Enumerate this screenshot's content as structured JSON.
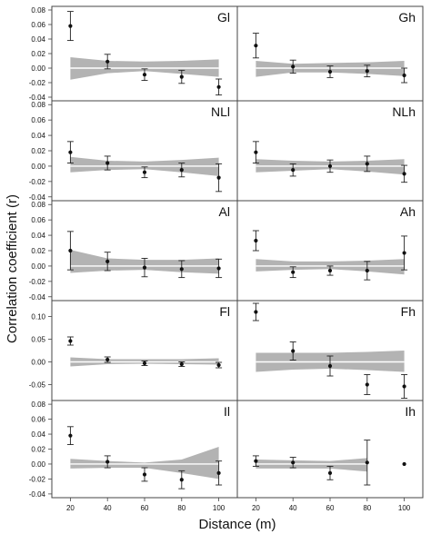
{
  "chart_data": {
    "type": "scatter",
    "xlabel": "Distance (m)",
    "ylabel": "Correlation coefficient (r)",
    "x": [
      20,
      40,
      60,
      80,
      100
    ],
    "x_ticks": [
      "20",
      "40",
      "60",
      "80",
      "100"
    ],
    "grid": false,
    "panels": [
      {
        "label": "Gl",
        "ylim": [
          -0.045,
          0.085
        ],
        "y_ticks": [
          "-0.04",
          "-0.02",
          "0.00",
          "0.02",
          "0.04",
          "0.06",
          "0.08"
        ],
        "y": [
          0.058,
          0.009,
          -0.009,
          -0.012,
          -0.026
        ],
        "err": [
          0.02,
          0.01,
          0.008,
          0.009,
          0.011
        ],
        "envelope_upper": [
          0.015,
          0.01,
          0.009,
          0.01,
          0.012
        ],
        "envelope_lower": [
          -0.016,
          -0.007,
          -0.004,
          -0.008,
          -0.012
        ]
      },
      {
        "label": "Gh",
        "ylim": [
          -0.045,
          0.085
        ],
        "y_ticks": [
          "-0.04",
          "-0.02",
          "0.00",
          "0.02",
          "0.04",
          "0.06",
          "0.08"
        ],
        "y": [
          0.031,
          0.002,
          -0.005,
          -0.004,
          -0.01
        ],
        "err": [
          0.017,
          0.009,
          0.008,
          0.008,
          0.01
        ],
        "envelope_upper": [
          0.01,
          0.006,
          0.007,
          0.008,
          0.01
        ],
        "envelope_lower": [
          -0.012,
          -0.006,
          -0.006,
          -0.008,
          -0.011
        ]
      },
      {
        "label": "NLl",
        "ylim": [
          -0.045,
          0.085
        ],
        "y_ticks": [
          "-0.04",
          "-0.02",
          "0.00",
          "0.02",
          "0.04",
          "0.06",
          "0.08"
        ],
        "y": [
          0.018,
          0.004,
          -0.008,
          -0.005,
          -0.015
        ],
        "err": [
          0.014,
          0.009,
          0.007,
          0.009,
          0.018
        ],
        "envelope_upper": [
          0.012,
          0.007,
          0.006,
          0.008,
          0.011
        ],
        "envelope_lower": [
          -0.008,
          -0.005,
          -0.004,
          -0.008,
          -0.013
        ]
      },
      {
        "label": "NLh",
        "ylim": [
          -0.045,
          0.085
        ],
        "y_ticks": [
          "-0.04",
          "-0.02",
          "0.00",
          "0.02",
          "0.04",
          "0.06",
          "0.08"
        ],
        "y": [
          0.018,
          -0.005,
          0.0,
          0.003,
          -0.01
        ],
        "err": [
          0.014,
          0.008,
          0.008,
          0.01,
          0.011
        ],
        "envelope_upper": [
          0.009,
          0.007,
          0.006,
          0.007,
          0.009
        ],
        "envelope_lower": [
          -0.008,
          -0.006,
          -0.004,
          -0.007,
          -0.011
        ]
      },
      {
        "label": "Al",
        "ylim": [
          -0.045,
          0.085
        ],
        "y_ticks": [
          "-0.04",
          "-0.02",
          "0.00",
          "0.02",
          "0.04",
          "0.06",
          "0.08"
        ],
        "y": [
          0.02,
          0.006,
          -0.002,
          -0.004,
          -0.003
        ],
        "err": [
          0.025,
          0.012,
          0.012,
          0.011,
          0.012
        ],
        "envelope_upper": [
          0.021,
          0.01,
          0.008,
          0.008,
          0.01
        ],
        "envelope_lower": [
          -0.009,
          -0.006,
          -0.005,
          -0.008,
          -0.01
        ]
      },
      {
        "label": "Ah",
        "ylim": [
          -0.045,
          0.085
        ],
        "y_ticks": [
          "-0.04",
          "-0.02",
          "0.00",
          "0.02",
          "0.04",
          "0.06",
          "0.08"
        ],
        "y": [
          0.033,
          -0.008,
          -0.006,
          -0.006,
          0.017
        ],
        "err": [
          0.013,
          0.007,
          0.006,
          0.012,
          0.022
        ],
        "envelope_upper": [
          0.009,
          0.006,
          0.006,
          0.007,
          0.009
        ],
        "envelope_lower": [
          -0.007,
          -0.005,
          -0.004,
          -0.007,
          -0.011
        ]
      },
      {
        "label": "Fl",
        "ylim": [
          -0.085,
          0.135
        ],
        "y_ticks": [
          "-0.05",
          "0.00",
          "0.05",
          "0.10"
        ],
        "y": [
          0.046,
          0.005,
          -0.003,
          -0.005,
          -0.007
        ],
        "err": [
          0.009,
          0.006,
          0.005,
          0.005,
          0.006
        ],
        "envelope_upper": [
          0.01,
          0.006,
          0.006,
          0.006,
          0.008
        ],
        "envelope_lower": [
          -0.01,
          -0.005,
          -0.004,
          -0.005,
          -0.006
        ]
      },
      {
        "label": "Fh",
        "ylim": [
          -0.085,
          0.135
        ],
        "y_ticks": [
          "-0.05",
          "0.00",
          "0.05",
          "0.10"
        ],
        "y": [
          0.11,
          0.024,
          -0.009,
          -0.05,
          -0.054
        ],
        "err": [
          0.019,
          0.02,
          0.022,
          0.022,
          0.026
        ],
        "envelope_upper": [
          0.02,
          0.02,
          0.02,
          0.022,
          0.025
        ],
        "envelope_lower": [
          -0.022,
          -0.017,
          -0.015,
          -0.018,
          -0.022
        ]
      },
      {
        "label": "Il",
        "ylim": [
          -0.045,
          0.085
        ],
        "y_ticks": [
          "-0.04",
          "-0.02",
          "0.00",
          "0.02",
          "0.04",
          "0.06",
          "0.08"
        ],
        "y": [
          0.038,
          0.003,
          -0.014,
          -0.021,
          -0.012
        ],
        "err": [
          0.012,
          0.008,
          0.009,
          0.012,
          0.016
        ],
        "envelope_upper": [
          0.007,
          0.004,
          0.002,
          0.006,
          0.023
        ],
        "envelope_lower": [
          -0.006,
          -0.005,
          -0.005,
          -0.012,
          -0.02
        ]
      },
      {
        "label": "Ih",
        "ylim": [
          -0.045,
          0.085
        ],
        "y_ticks": [
          "-0.04",
          "-0.02",
          "0.00",
          "0.02",
          "0.04",
          "0.06",
          "0.08"
        ],
        "y": [
          0.004,
          0.002,
          -0.012,
          0.002,
          0.0
        ],
        "err": [
          0.007,
          0.007,
          0.009,
          0.03,
          0.0
        ],
        "envelope_upper": [
          0.006,
          0.005,
          0.004,
          0.008,
          0.0
        ],
        "envelope_lower": [
          -0.006,
          -0.006,
          -0.006,
          -0.01,
          0.0
        ]
      }
    ]
  }
}
